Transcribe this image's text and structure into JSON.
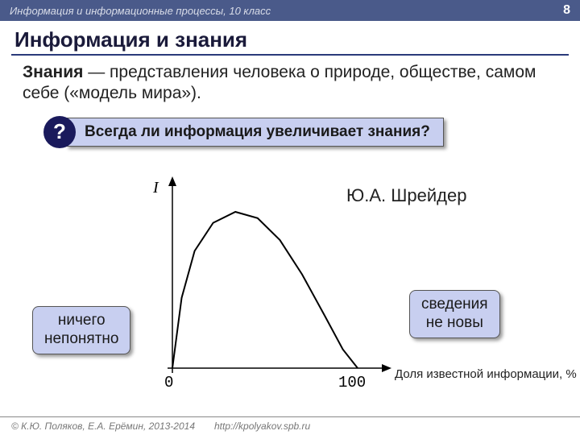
{
  "header": {
    "course": "Информация и информационные процессы, 10 класс",
    "page": "8"
  },
  "title": "Информация и знания",
  "body": {
    "term": "Знания",
    "definition": " — представления человека о природе, обществе, самом себе («модель мира»)."
  },
  "question": {
    "badge": "?",
    "text": "Всегда ли информация увеличивает знания?"
  },
  "chart": {
    "type": "line",
    "author": "Ю.А. Шрейдер",
    "y_label": "I",
    "x_label": "Доля известной информации, %",
    "x_min_label": "0",
    "x_max_label": "100",
    "xlim": [
      0,
      100
    ],
    "ylim": [
      0,
      1
    ],
    "curve_points": [
      [
        0,
        0
      ],
      [
        5,
        0.45
      ],
      [
        12,
        0.75
      ],
      [
        22,
        0.93
      ],
      [
        34,
        1.0
      ],
      [
        46,
        0.96
      ],
      [
        58,
        0.82
      ],
      [
        70,
        0.6
      ],
      [
        82,
        0.34
      ],
      [
        92,
        0.12
      ],
      [
        100,
        0
      ]
    ],
    "axis_color": "#000000",
    "curve_color": "#000000",
    "curve_width": 2,
    "background_color": "#ffffff"
  },
  "callouts": {
    "left": "ничего непонятно",
    "right": "сведения не новы"
  },
  "footer": {
    "copyright": "© К.Ю. Поляков, Е.А. Ерёмин, 2013-2014",
    "url": "http://kpolyakov.spb.ru"
  },
  "colors": {
    "header_bg": "#4a5a8a",
    "accent_bg": "#c8cff0",
    "badge_bg": "#1a1a5c",
    "title_underline": "#2a3a7a"
  }
}
